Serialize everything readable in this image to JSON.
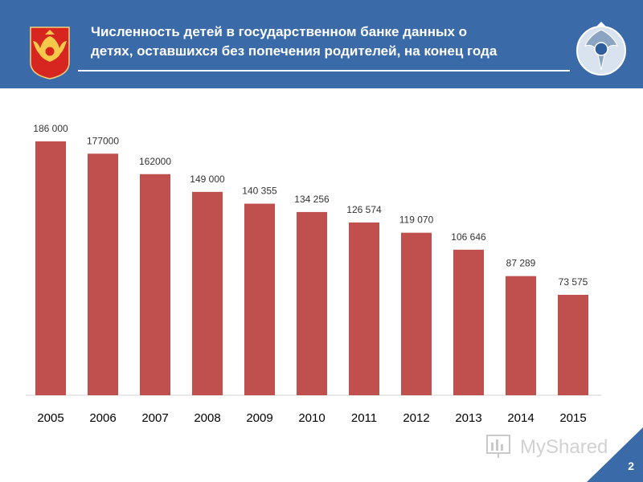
{
  "header": {
    "title_line1": "Численность детей в государственном банке данных о",
    "title_line2": "детях, оставшихся без попечения родителей, на конец года",
    "bg_color": "#3a6aa8"
  },
  "icons": {
    "left": "russian-coat-of-arms-icon",
    "right": "ministry-seal-icon",
    "watermark": "myshared-logo-icon"
  },
  "watermark_text": "MyShared",
  "page_number": "2",
  "chart_data": {
    "type": "bar",
    "title": "",
    "xlabel": "",
    "ylabel": "",
    "categories": [
      "2005",
      "2006",
      "2007",
      "2008",
      "2009",
      "2010",
      "2011",
      "2012",
      "2013",
      "2014",
      "2015"
    ],
    "values": [
      186000,
      177000,
      162000,
      149000,
      140355,
      134256,
      126574,
      119070,
      106646,
      87289,
      73575
    ],
    "labels": [
      "186 000",
      "177000",
      "162000",
      "149 000",
      "140 355",
      "134 256",
      "126 574",
      "119 070",
      "106 646",
      "87 289",
      "73 575"
    ],
    "ylim": [
      0,
      186000
    ],
    "bar_color": "#c0504d",
    "grid": false,
    "legend": "none"
  }
}
